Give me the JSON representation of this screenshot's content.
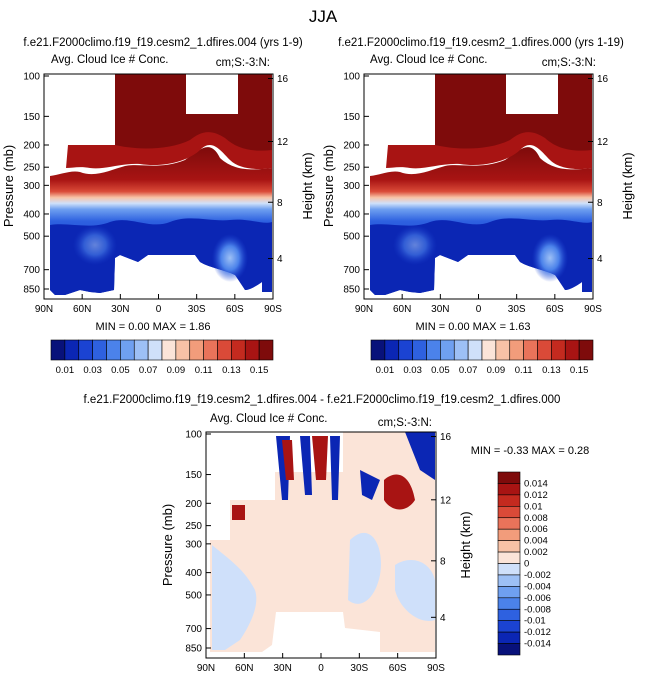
{
  "figure": {
    "title": "JJA"
  },
  "colormap": [
    "#08117a",
    "#0b26b4",
    "#1b43d2",
    "#2e61e0",
    "#4b82ea",
    "#6fa0f0",
    "#9dc0f5",
    "#cfe0fa",
    "#fbe4d8",
    "#f8c2a6",
    "#f29c7b",
    "#e9735a",
    "#da4a38",
    "#c42a1f",
    "#a81413",
    "#7e0b0b"
  ],
  "chart_data": [
    {
      "type": "heatmap",
      "name": "top-left",
      "title": "f.e21.F2000climo.f19_f19.cesm2_1.dfires.004 (yrs 1-9)",
      "left_label": "Avg. Cloud Ice # Conc.",
      "right_label": "cm;S:-3:N:",
      "ylabel": "Pressure (mb)",
      "ylabel_right": "Height (km)",
      "x_ticks": [
        "90N",
        "60N",
        "30N",
        "0",
        "30S",
        "60S",
        "90S"
      ],
      "y_ticks": [
        "100",
        "150",
        "200",
        "250",
        "300",
        "400",
        "500",
        "700",
        "850"
      ],
      "y_ticks_right": [
        "16",
        "12",
        "8",
        "4"
      ],
      "min_max": "MIN =  0.00  MAX =  1.86",
      "colorbar_labels": [
        "0.01",
        "0.03",
        "0.05",
        "0.07",
        "0.09",
        "0.11",
        "0.13",
        "0.15"
      ],
      "xlim": [
        90,
        -90
      ],
      "ylim": [
        100,
        850
      ],
      "cloud_top_profile": [
        {
          "lat": 90,
          "p": 250
        },
        {
          "lat": 75,
          "p": 230
        },
        {
          "lat": 60,
          "p": 250
        },
        {
          "lat": 45,
          "p": 225
        },
        {
          "lat": 30,
          "p": 255
        },
        {
          "lat": 15,
          "p": 250
        },
        {
          "lat": 0,
          "p": 235
        },
        {
          "lat": -15,
          "p": 210
        },
        {
          "lat": -25,
          "p": 190
        },
        {
          "lat": -35,
          "p": 240
        },
        {
          "lat": -50,
          "p": 255
        },
        {
          "lat": -65,
          "p": 245
        },
        {
          "lat": -80,
          "p": 255
        },
        {
          "lat": -90,
          "p": 250
        }
      ]
    },
    {
      "type": "heatmap",
      "name": "top-right",
      "title": "f.e21.F2000climo.f19_f19.cesm2_1.dfires.000 (yrs 1-19)",
      "left_label": "Avg. Cloud Ice # Conc.",
      "right_label": "cm;S:-3:N:",
      "ylabel": "Pressure (mb)",
      "ylabel_right": "Height (km)",
      "x_ticks": [
        "90N",
        "60N",
        "30N",
        "0",
        "30S",
        "60S",
        "90S"
      ],
      "y_ticks": [
        "100",
        "150",
        "200",
        "250",
        "300",
        "400",
        "500",
        "700",
        "850"
      ],
      "y_ticks_right": [
        "16",
        "12",
        "8",
        "4"
      ],
      "min_max": "MIN =  0.00  MAX =  1.63",
      "colorbar_labels": [
        "0.01",
        "0.03",
        "0.05",
        "0.07",
        "0.09",
        "0.11",
        "0.13",
        "0.15"
      ],
      "xlim": [
        90,
        -90
      ],
      "ylim": [
        100,
        850
      ]
    },
    {
      "type": "heatmap",
      "name": "difference",
      "title": "f.e21.F2000climo.f19_f19.cesm2_1.dfires.004 - f.e21.F2000climo.f19_f19.cesm2_1.dfires.000",
      "left_label": "Avg. Cloud Ice # Conc.",
      "right_label": "cm;S:-3:N:",
      "ylabel": "Pressure (mb)",
      "ylabel_right": "Height (km)",
      "x_ticks": [
        "90N",
        "60N",
        "30N",
        "0",
        "30S",
        "60S",
        "90S"
      ],
      "y_ticks": [
        "100",
        "150",
        "200",
        "250",
        "300",
        "400",
        "500",
        "700",
        "850"
      ],
      "y_ticks_right": [
        "16",
        "12",
        "8",
        "4"
      ],
      "min_max": "MIN = -0.33  MAX =   0.28",
      "colorbar_labels": [
        "0.014",
        "0.012",
        "0.01",
        "0.008",
        "0.006",
        "0.004",
        "0.002",
        "0",
        "-0.002",
        "-0.004",
        "-0.006",
        "-0.008",
        "-0.01",
        "-0.012",
        "-0.014"
      ],
      "xlim": [
        90,
        -90
      ],
      "ylim": [
        100,
        850
      ]
    }
  ]
}
